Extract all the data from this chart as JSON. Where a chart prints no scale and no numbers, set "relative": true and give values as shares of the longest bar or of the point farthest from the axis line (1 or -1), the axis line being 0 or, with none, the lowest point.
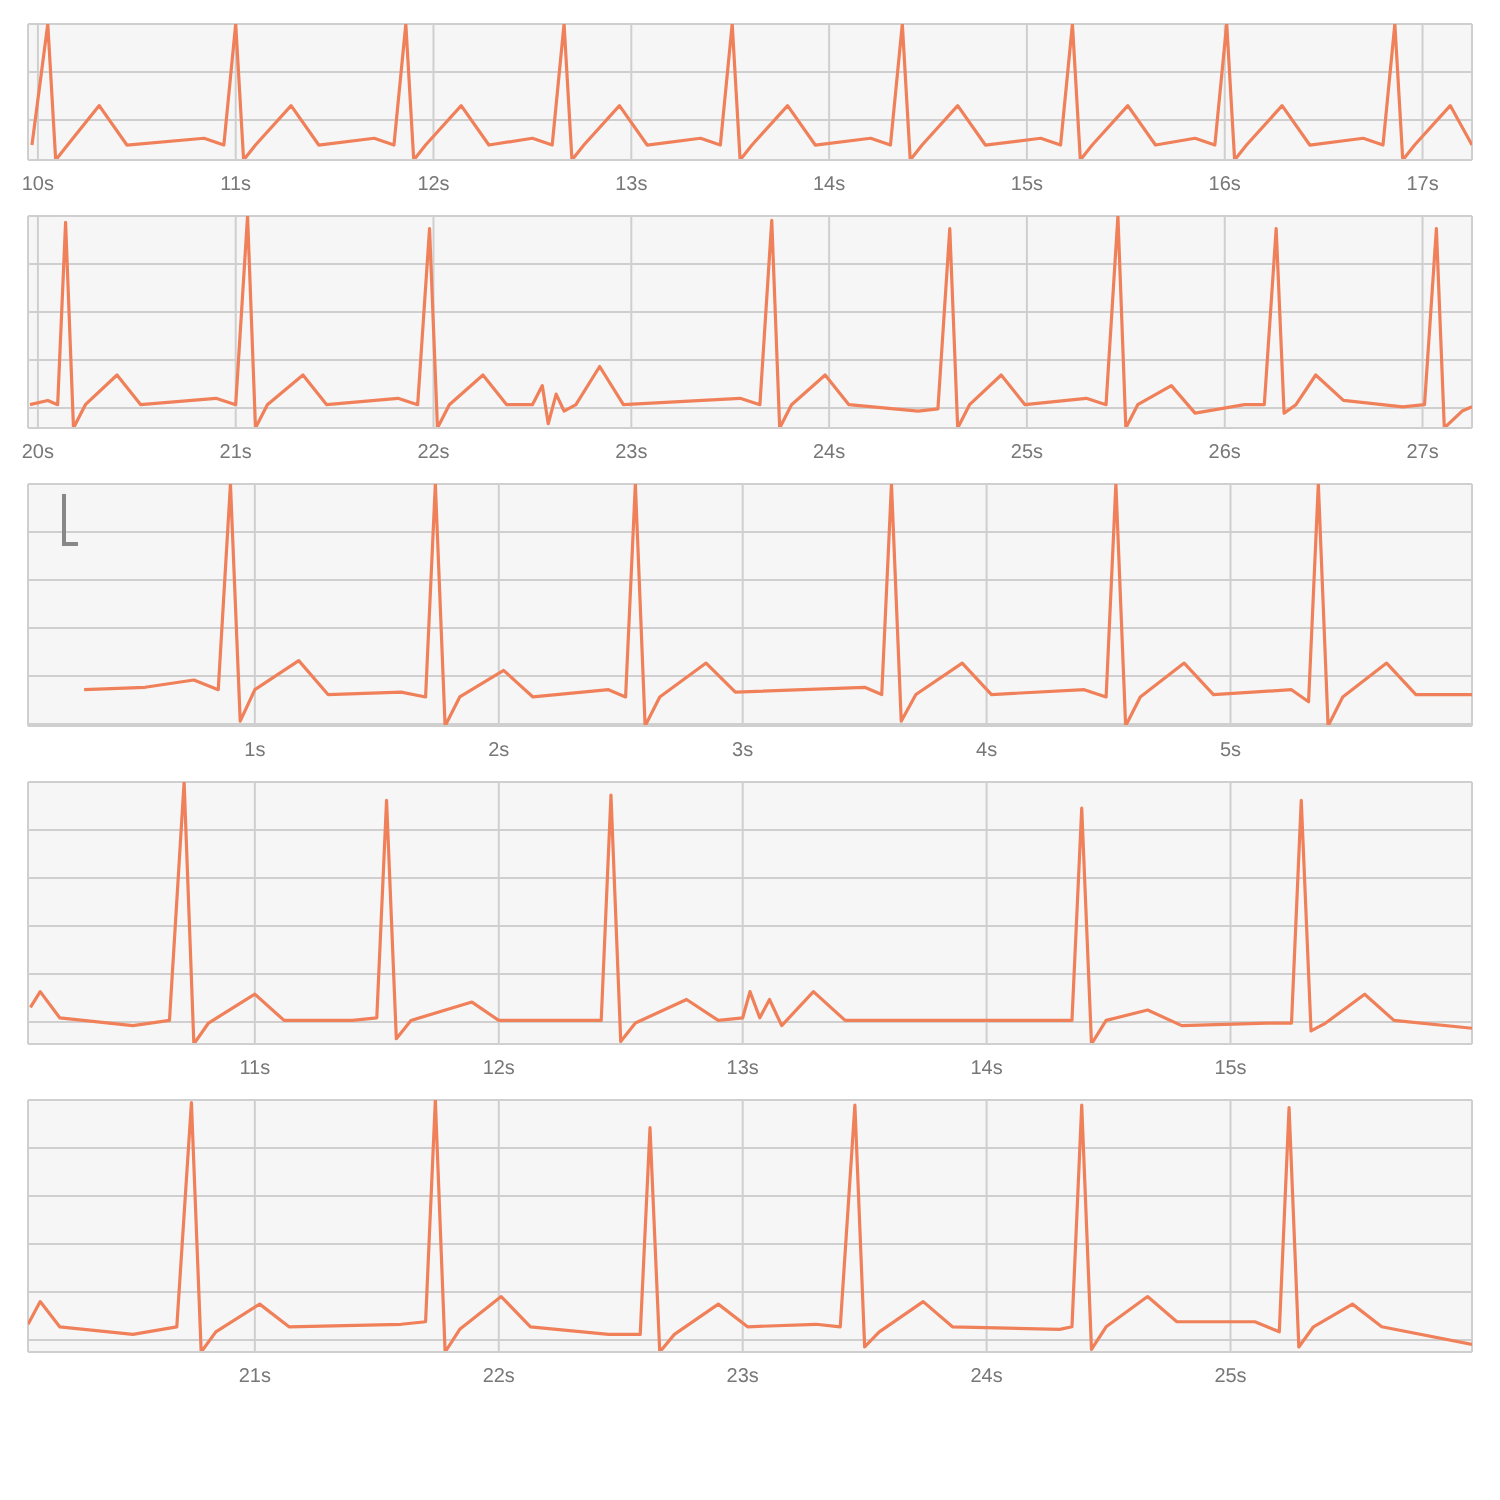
{
  "chart_data": [
    {
      "type": "line",
      "relative": true,
      "grid": true,
      "xlim": [
        9.95,
        17.25
      ],
      "xticks": [
        {
          "value": 10,
          "label": "10s"
        },
        {
          "value": 11,
          "label": "11s"
        },
        {
          "value": 12,
          "label": "12s"
        },
        {
          "value": 13,
          "label": "13s"
        },
        {
          "value": 14,
          "label": "14s"
        },
        {
          "value": 15,
          "label": "15s"
        },
        {
          "value": 16,
          "label": "16s"
        },
        {
          "value": 17,
          "label": "17s"
        }
      ],
      "x": [
        9.97,
        10.05,
        10.09,
        10.15,
        10.31,
        10.45,
        10.84,
        10.94,
        11.0,
        11.04,
        11.1,
        11.28,
        11.42,
        11.7,
        11.8,
        11.86,
        11.9,
        11.96,
        12.14,
        12.28,
        12.5,
        12.6,
        12.66,
        12.7,
        12.76,
        12.94,
        13.08,
        13.35,
        13.45,
        13.51,
        13.55,
        13.61,
        13.79,
        13.93,
        14.21,
        14.31,
        14.37,
        14.41,
        14.47,
        14.65,
        14.79,
        15.07,
        15.17,
        15.23,
        15.27,
        15.33,
        15.51,
        15.65,
        15.85,
        15.95,
        16.01,
        16.05,
        16.11,
        16.29,
        16.43,
        16.7,
        16.8,
        16.86,
        16.9,
        16.96,
        17.14,
        17.25
      ],
      "series": [
        {
          "color": "#f0805a",
          "values": [
            0.11,
            1,
            0,
            0.11,
            0.4,
            0.11,
            0.16,
            0.11,
            1,
            0,
            0.11,
            0.4,
            0.11,
            0.16,
            0.11,
            1,
            0,
            0.11,
            0.4,
            0.11,
            0.16,
            0.11,
            1,
            0,
            0.11,
            0.4,
            0.11,
            0.16,
            0.11,
            1,
            0,
            0.11,
            0.4,
            0.11,
            0.16,
            0.11,
            1,
            0,
            0.11,
            0.4,
            0.11,
            0.16,
            0.11,
            1,
            0,
            0.11,
            0.4,
            0.11,
            0.16,
            0.11,
            1,
            0,
            0.11,
            0.4,
            0.11,
            0.16,
            0.11,
            1,
            0,
            0.11,
            0.4,
            0.11
          ]
        }
      ]
    },
    {
      "type": "line",
      "relative": true,
      "grid": true,
      "xlim": [
        19.95,
        27.25
      ],
      "xticks": [
        {
          "value": 20,
          "label": "20s"
        },
        {
          "value": 21,
          "label": "21s"
        },
        {
          "value": 22,
          "label": "22s"
        },
        {
          "value": 23,
          "label": "23s"
        },
        {
          "value": 24,
          "label": "24s"
        },
        {
          "value": 25,
          "label": "25s"
        },
        {
          "value": 26,
          "label": "26s"
        },
        {
          "value": 27,
          "label": "27s"
        }
      ],
      "x": [
        19.96,
        20.05,
        20.1,
        20.14,
        20.18,
        20.24,
        20.4,
        20.52,
        20.9,
        21.0,
        21.06,
        21.1,
        21.16,
        21.34,
        21.46,
        21.82,
        21.92,
        21.98,
        22.02,
        22.08,
        22.25,
        22.37,
        22.5,
        22.55,
        22.58,
        22.62,
        22.66,
        22.72,
        22.84,
        22.96,
        23.55,
        23.65,
        23.71,
        23.75,
        23.81,
        23.98,
        24.1,
        24.45,
        24.55,
        24.61,
        24.65,
        24.71,
        24.87,
        24.99,
        25.3,
        25.4,
        25.46,
        25.5,
        25.56,
        25.73,
        25.85,
        26.1,
        26.2,
        26.26,
        26.3,
        26.36,
        26.46,
        26.6,
        26.9,
        27.01,
        27.07,
        27.11,
        27.2,
        27.25
      ],
      "series": [
        {
          "color": "#f0805a",
          "values": [
            0.11,
            0.13,
            0.11,
            0.97,
            0,
            0.11,
            0.25,
            0.11,
            0.14,
            0.11,
            1,
            0,
            0.11,
            0.25,
            0.11,
            0.14,
            0.11,
            0.94,
            0,
            0.11,
            0.25,
            0.11,
            0.11,
            0.2,
            0.02,
            0.16,
            0.08,
            0.11,
            0.29,
            0.11,
            0.14,
            0.11,
            0.98,
            0,
            0.11,
            0.25,
            0.11,
            0.08,
            0.09,
            0.94,
            0,
            0.11,
            0.25,
            0.11,
            0.14,
            0.11,
            1,
            0,
            0.11,
            0.2,
            0.07,
            0.11,
            0.11,
            0.94,
            0.07,
            0.11,
            0.25,
            0.13,
            0.1,
            0.11,
            0.94,
            0,
            0.08,
            0.1
          ]
        }
      ]
    },
    {
      "type": "line",
      "relative": true,
      "grid": true,
      "xlim": [
        0.07,
        5.99
      ],
      "xticks": [
        {
          "value": 1,
          "label": "1s"
        },
        {
          "value": 2,
          "label": "2s"
        },
        {
          "value": 3,
          "label": "3s"
        },
        {
          "value": 4,
          "label": "4s"
        },
        {
          "value": 5,
          "label": "5s"
        }
      ],
      "x": [
        0.3,
        0.55,
        0.75,
        0.85,
        0.9,
        0.94,
        1.0,
        1.18,
        1.3,
        1.6,
        1.7,
        1.74,
        1.78,
        1.84,
        2.02,
        2.14,
        2.45,
        2.52,
        2.56,
        2.6,
        2.66,
        2.85,
        2.97,
        3.5,
        3.57,
        3.61,
        3.65,
        3.71,
        3.9,
        4.02,
        4.4,
        4.49,
        4.53,
        4.57,
        4.63,
        4.81,
        4.93,
        5.25,
        5.32,
        5.36,
        5.4,
        5.46,
        5.64,
        5.76,
        5.99
      ],
      "series": [
        {
          "color": "#f0805a",
          "values": [
            0.15,
            0.16,
            0.19,
            0.15,
            1,
            0.02,
            0.15,
            0.27,
            0.13,
            0.14,
            0.12,
            1,
            0,
            0.12,
            0.23,
            0.12,
            0.15,
            0.12,
            1,
            0,
            0.12,
            0.26,
            0.14,
            0.16,
            0.13,
            1,
            0.02,
            0.13,
            0.26,
            0.13,
            0.15,
            0.12,
            1,
            0,
            0.12,
            0.26,
            0.13,
            0.15,
            0.1,
            1,
            0,
            0.12,
            0.26,
            0.13,
            0.13
          ]
        }
      ]
    },
    {
      "type": "line",
      "relative": true,
      "grid": true,
      "xlim": [
        10.07,
        15.99
      ],
      "xticks": [
        {
          "value": 11,
          "label": "11s"
        },
        {
          "value": 12,
          "label": "12s"
        },
        {
          "value": 13,
          "label": "13s"
        },
        {
          "value": 14,
          "label": "14s"
        },
        {
          "value": 15,
          "label": "15s"
        }
      ],
      "x": [
        10.08,
        10.12,
        10.2,
        10.5,
        10.65,
        10.71,
        10.75,
        10.81,
        11.0,
        11.12,
        11.4,
        11.5,
        11.54,
        11.58,
        11.64,
        11.89,
        12.0,
        12.35,
        12.42,
        12.46,
        12.5,
        12.56,
        12.77,
        12.9,
        13.0,
        13.03,
        13.07,
        13.11,
        13.16,
        13.29,
        13.42,
        14.2,
        14.35,
        14.39,
        14.43,
        14.49,
        14.66,
        14.8,
        15.15,
        15.25,
        15.29,
        15.33,
        15.39,
        15.55,
        15.67,
        15.99
      ],
      "series": [
        {
          "color": "#f0805a",
          "values": [
            0.14,
            0.2,
            0.1,
            0.07,
            0.09,
            1,
            0,
            0.08,
            0.19,
            0.09,
            0.09,
            0.1,
            0.93,
            0.02,
            0.09,
            0.16,
            0.09,
            0.09,
            0.09,
            0.95,
            0.01,
            0.08,
            0.17,
            0.09,
            0.1,
            0.2,
            0.1,
            0.17,
            0.07,
            0.2,
            0.09,
            0.09,
            0.09,
            0.9,
            0,
            0.09,
            0.13,
            0.07,
            0.08,
            0.08,
            0.93,
            0.05,
            0.08,
            0.19,
            0.09,
            0.06
          ]
        }
      ]
    },
    {
      "type": "line",
      "relative": true,
      "grid": true,
      "xlim": [
        20.07,
        25.99
      ],
      "xticks": [
        {
          "value": 21,
          "label": "21s"
        },
        {
          "value": 22,
          "label": "22s"
        },
        {
          "value": 23,
          "label": "23s"
        },
        {
          "value": 24,
          "label": "24s"
        },
        {
          "value": 25,
          "label": "25s"
        }
      ],
      "x": [
        20.07,
        20.12,
        20.2,
        20.5,
        20.68,
        20.74,
        20.78,
        20.84,
        21.02,
        21.14,
        21.6,
        21.7,
        21.74,
        21.78,
        21.84,
        22.01,
        22.13,
        22.45,
        22.58,
        22.62,
        22.66,
        22.72,
        22.9,
        23.02,
        23.3,
        23.4,
        23.46,
        23.5,
        23.56,
        23.74,
        23.86,
        24.3,
        24.35,
        24.39,
        24.43,
        24.49,
        24.66,
        24.78,
        25.1,
        25.2,
        25.24,
        25.28,
        25.34,
        25.5,
        25.62,
        25.99
      ],
      "series": [
        {
          "color": "#f0805a",
          "values": [
            0.11,
            0.2,
            0.1,
            0.07,
            0.1,
            0.99,
            0,
            0.08,
            0.19,
            0.1,
            0.11,
            0.12,
            1,
            0,
            0.09,
            0.22,
            0.1,
            0.07,
            0.07,
            0.89,
            0,
            0.07,
            0.19,
            0.1,
            0.11,
            0.1,
            0.98,
            0.02,
            0.08,
            0.2,
            0.1,
            0.09,
            0.1,
            0.98,
            0.01,
            0.1,
            0.22,
            0.12,
            0.12,
            0.08,
            0.97,
            0.02,
            0.1,
            0.19,
            0.1,
            0.03
          ]
        }
      ]
    }
  ]
}
